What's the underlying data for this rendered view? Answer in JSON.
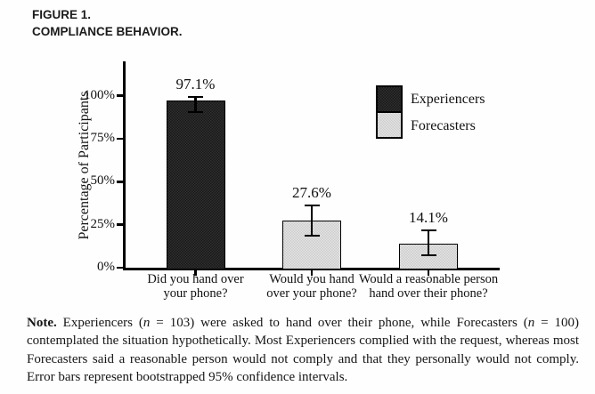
{
  "header": {
    "line1": "FIGURE 1.",
    "line2": "COMPLIANCE BEHAVIOR."
  },
  "chart_data": {
    "type": "bar",
    "title": "",
    "ylabel": "Percentage of Participants",
    "xlabel": "",
    "ylim": [
      0,
      100
    ],
    "grid": false,
    "legend_position": "upper right",
    "yticks": [
      {
        "value": 0,
        "label": "0%"
      },
      {
        "value": 25,
        "label": "25%"
      },
      {
        "value": 50,
        "label": "50%"
      },
      {
        "value": 75,
        "label": "75%"
      },
      {
        "value": 100,
        "label": "100%"
      }
    ],
    "bars": [
      {
        "category_lines": [
          "Did you hand over",
          "your phone?"
        ],
        "value": 97.1,
        "label": "97.1%",
        "ci_low": 90.4,
        "ci_high": 99.2,
        "group": "experiencers"
      },
      {
        "category_lines": [
          "Would you hand",
          "over your phone?"
        ],
        "value": 27.6,
        "label": "27.6%",
        "ci_low": 18.7,
        "ci_high": 36.3,
        "group": "forecasters"
      },
      {
        "category_lines": [
          "Would a reasonable person",
          "hand over their phone?"
        ],
        "value": 14.1,
        "label": "14.1%",
        "ci_low": 7.3,
        "ci_high": 21.8,
        "group": "forecasters"
      }
    ],
    "legend": [
      {
        "label": "Experiencers",
        "group": "experiencers"
      },
      {
        "label": "Forecasters",
        "group": "forecasters"
      }
    ]
  },
  "colors": {
    "experiencers_fill": "#181818",
    "experiencers_speckle": "#303030",
    "forecasters_fill": "#cccccc",
    "forecasters_speckle": "#e4e4e4",
    "axis": "#000000",
    "text": "#1a1a1a",
    "background": "#fffefe"
  },
  "note": {
    "segments": [
      {
        "text": "Note.",
        "bold": true
      },
      {
        "text": " Experiencers ("
      },
      {
        "text": "n",
        "italic": true
      },
      {
        "text": " = 103) were asked to hand over their phone, while Forecasters ("
      },
      {
        "text": "n",
        "italic": true
      },
      {
        "text": " = 100) contemplated the situation hypothetically. Most Experiencers complied with the request, whereas most Forecasters said a reasonable person would not comply and that they personally would not comply. Error bars represent bootstrapped 95% confidence intervals."
      }
    ]
  }
}
